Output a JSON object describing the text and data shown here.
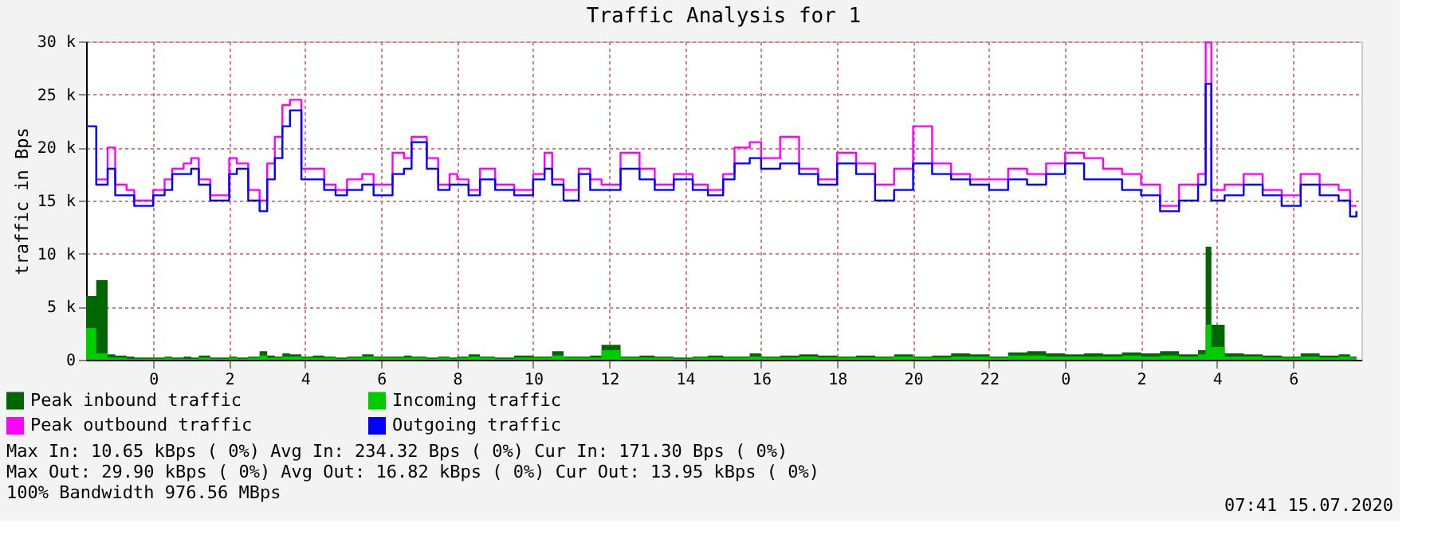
{
  "chart_data": {
    "type": "step",
    "title": "Traffic Analysis for 1",
    "ylabel": "traffic in Bps",
    "x": [
      "2020-07-13T22:14",
      "2020-07-13T22:30",
      "2020-07-13T22:48",
      "2020-07-13T23:00",
      "2020-07-13T23:18",
      "2020-07-13T23:30",
      "2020-07-14T00:00",
      "2020-07-14T00:18",
      "2020-07-14T00:30",
      "2020-07-14T00:48",
      "2020-07-14T01:00",
      "2020-07-14T01:12",
      "2020-07-14T01:30",
      "2020-07-14T02:00",
      "2020-07-14T02:12",
      "2020-07-14T02:30",
      "2020-07-14T02:48",
      "2020-07-14T03:00",
      "2020-07-14T03:12",
      "2020-07-14T03:24",
      "2020-07-14T03:36",
      "2020-07-14T03:54",
      "2020-07-14T04:12",
      "2020-07-14T04:30",
      "2020-07-14T04:48",
      "2020-07-14T05:06",
      "2020-07-14T05:30",
      "2020-07-14T05:48",
      "2020-07-14T06:18",
      "2020-07-14T06:36",
      "2020-07-14T06:48",
      "2020-07-14T07:12",
      "2020-07-14T07:30",
      "2020-07-14T07:48",
      "2020-07-14T08:00",
      "2020-07-14T08:18",
      "2020-07-14T08:36",
      "2020-07-14T09:00",
      "2020-07-14T09:30",
      "2020-07-14T10:00",
      "2020-07-14T10:18",
      "2020-07-14T10:30",
      "2020-07-14T10:48",
      "2020-07-14T11:12",
      "2020-07-14T11:30",
      "2020-07-14T11:48",
      "2020-07-14T12:18",
      "2020-07-14T12:48",
      "2020-07-14T13:12",
      "2020-07-14T13:42",
      "2020-07-14T14:12",
      "2020-07-14T14:36",
      "2020-07-14T15:00",
      "2020-07-14T15:18",
      "2020-07-14T15:42",
      "2020-07-14T16:00",
      "2020-07-14T16:30",
      "2020-07-14T17:00",
      "2020-07-14T17:30",
      "2020-07-14T18:00",
      "2020-07-14T18:30",
      "2020-07-14T19:00",
      "2020-07-14T19:30",
      "2020-07-14T20:00",
      "2020-07-14T20:30",
      "2020-07-14T21:00",
      "2020-07-14T21:30",
      "2020-07-14T22:00",
      "2020-07-14T22:30",
      "2020-07-14T23:00",
      "2020-07-14T23:30",
      "2020-07-15T00:00",
      "2020-07-15T00:30",
      "2020-07-15T01:00",
      "2020-07-15T01:30",
      "2020-07-15T02:00",
      "2020-07-15T02:30",
      "2020-07-15T03:00",
      "2020-07-15T03:30",
      "2020-07-15T03:42",
      "2020-07-15T03:51",
      "2020-07-15T04:12",
      "2020-07-15T04:42",
      "2020-07-15T05:12",
      "2020-07-15T05:42",
      "2020-07-15T06:12",
      "2020-07-15T06:42",
      "2020-07-15T07:12",
      "2020-07-15T07:30",
      "2020-07-15T07:40"
    ],
    "series": [
      {
        "name": "Peak inbound traffic",
        "type": "area",
        "color": "#006600",
        "values": [
          6000,
          7500,
          500,
          400,
          300,
          200,
          200,
          300,
          200,
          300,
          200,
          400,
          200,
          300,
          200,
          300,
          800,
          400,
          300,
          600,
          500,
          300,
          400,
          300,
          200,
          300,
          500,
          300,
          300,
          400,
          300,
          200,
          300,
          200,
          300,
          500,
          300,
          200,
          400,
          300,
          300,
          800,
          300,
          300,
          400,
          1400,
          300,
          400,
          300,
          200,
          300,
          400,
          300,
          300,
          600,
          300,
          400,
          500,
          400,
          300,
          400,
          300,
          500,
          300,
          400,
          600,
          500,
          300,
          700,
          800,
          600,
          500,
          600,
          500,
          700,
          600,
          800,
          500,
          900,
          10650,
          3300,
          600,
          500,
          400,
          300,
          600,
          400,
          500,
          300,
          300
        ]
      },
      {
        "name": "Incoming traffic",
        "type": "area",
        "color": "#00cc00",
        "values": [
          3000,
          600,
          200,
          200,
          100,
          100,
          100,
          200,
          100,
          100,
          100,
          200,
          100,
          200,
          100,
          200,
          400,
          200,
          200,
          300,
          300,
          200,
          200,
          200,
          100,
          200,
          300,
          200,
          200,
          200,
          200,
          100,
          200,
          100,
          200,
          300,
          200,
          100,
          200,
          200,
          200,
          400,
          200,
          200,
          200,
          900,
          200,
          200,
          200,
          100,
          200,
          200,
          200,
          200,
          300,
          200,
          200,
          300,
          200,
          200,
          200,
          200,
          300,
          200,
          200,
          300,
          300,
          200,
          400,
          400,
          300,
          300,
          300,
          300,
          400,
          300,
          400,
          300,
          500,
          3300,
          1200,
          300,
          300,
          200,
          200,
          300,
          200,
          300,
          200,
          200
        ]
      },
      {
        "name": "Peak outbound traffic",
        "color": "#ff00ff",
        "values": [
          null,
          17000,
          20000,
          16500,
          16000,
          15000,
          16000,
          17000,
          18000,
          18500,
          19000,
          17000,
          15500,
          19000,
          18500,
          16000,
          15000,
          18500,
          21000,
          24000,
          24500,
          18000,
          18000,
          16500,
          16000,
          17000,
          17500,
          16500,
          19500,
          19000,
          21000,
          19000,
          16500,
          17500,
          17000,
          16000,
          18000,
          16500,
          16000,
          17500,
          19500,
          17000,
          16000,
          18000,
          17000,
          16500,
          19500,
          18000,
          16500,
          17500,
          16500,
          16000,
          17500,
          20000,
          20500,
          19000,
          21000,
          18000,
          17000,
          19500,
          18500,
          16500,
          18000,
          22000,
          18500,
          17500,
          17000,
          17000,
          18000,
          17500,
          18500,
          19500,
          19000,
          18000,
          17500,
          16500,
          14500,
          16500,
          17500,
          29900,
          16000,
          16500,
          17500,
          16000,
          15500,
          17500,
          16500,
          16000,
          14500,
          14500
        ]
      },
      {
        "name": "Outgoing traffic",
        "color": "#0000ff",
        "values": [
          22000,
          16500,
          18000,
          15500,
          15500,
          14500,
          15500,
          16000,
          17500,
          17500,
          18000,
          16500,
          15000,
          17500,
          18000,
          15000,
          14000,
          17000,
          19000,
          22000,
          23500,
          17000,
          17000,
          16000,
          15500,
          16000,
          16500,
          15500,
          17500,
          18000,
          20500,
          18000,
          16000,
          16500,
          16500,
          15500,
          17000,
          16000,
          15500,
          17000,
          18000,
          16500,
          15000,
          17500,
          16000,
          16000,
          18000,
          17000,
          16000,
          17000,
          16000,
          15500,
          17000,
          18500,
          19000,
          18000,
          18500,
          17500,
          16500,
          18500,
          17500,
          15000,
          16000,
          18500,
          17500,
          17000,
          16500,
          16000,
          17000,
          16500,
          17500,
          18500,
          17000,
          17000,
          16000,
          15500,
          14000,
          15000,
          16500,
          26000,
          15000,
          15500,
          16500,
          15500,
          14500,
          16500,
          15500,
          15000,
          13500,
          14000
        ]
      }
    ],
    "xlim": [
      "2020-07-13T22:14",
      "2020-07-15T07:48"
    ],
    "xticks": [
      {
        "value": "2020-07-14T00:00",
        "label": "0"
      },
      {
        "value": "2020-07-14T02:00",
        "label": "2"
      },
      {
        "value": "2020-07-14T04:00",
        "label": "4"
      },
      {
        "value": "2020-07-14T06:00",
        "label": "6"
      },
      {
        "value": "2020-07-14T08:00",
        "label": "8"
      },
      {
        "value": "2020-07-14T10:00",
        "label": "10"
      },
      {
        "value": "2020-07-14T12:00",
        "label": "12"
      },
      {
        "value": "2020-07-14T14:00",
        "label": "14"
      },
      {
        "value": "2020-07-14T16:00",
        "label": "16"
      },
      {
        "value": "2020-07-14T18:00",
        "label": "18"
      },
      {
        "value": "2020-07-14T20:00",
        "label": "20"
      },
      {
        "value": "2020-07-14T22:00",
        "label": "22"
      },
      {
        "value": "2020-07-15T00:00",
        "label": "0"
      },
      {
        "value": "2020-07-15T02:00",
        "label": "2"
      },
      {
        "value": "2020-07-15T04:00",
        "label": "4"
      },
      {
        "value": "2020-07-15T06:00",
        "label": "6"
      }
    ],
    "ylim": [
      0,
      30000
    ],
    "yticks": [
      0,
      {
        "value": 5000,
        "label": "5 k"
      },
      {
        "value": 10000,
        "label": "10 k"
      },
      {
        "value": 15000,
        "label": "15 k"
      },
      {
        "value": 20000,
        "label": "20 k"
      },
      {
        "value": 25000,
        "label": "25 k"
      },
      {
        "value": 30000,
        "label": "30 k"
      }
    ],
    "grid": true,
    "legend": "bottom left",
    "annotations": [
      "Max In:  10.65 kBps ( 0%)  Avg In: 234.32  Bps ( 0%)  Cur In: 171.30  Bps ( 0%)",
      "Max Out: 29.90 kBps ( 0%)  Avg Out: 16.82 kBps ( 0%)  Cur Out: 13.95 kBps ( 0%)",
      "100% Bandwidth 976.56 MBps",
      "07:41 15.07.2020"
    ]
  }
}
